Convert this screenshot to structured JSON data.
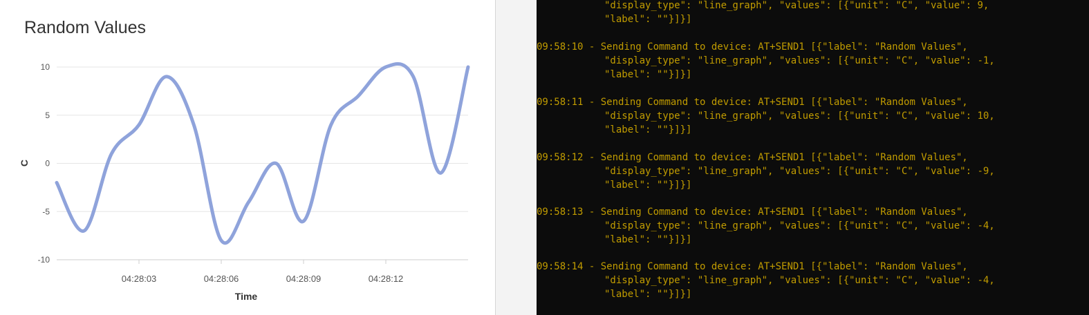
{
  "chart_data": {
    "type": "line",
    "title": "Random Values",
    "xlabel": "Time",
    "ylabel": "C",
    "yticks": [
      "10",
      "5",
      "0",
      "-5",
      "-10"
    ],
    "ylim": [
      -10,
      10
    ],
    "xticks": [
      "04:28:03",
      "04:28:06",
      "04:28:09",
      "04:28:12"
    ],
    "xlim": [
      0,
      15
    ],
    "grid": true,
    "legend": "none",
    "color": "#8fa3db",
    "x": [
      0,
      1,
      2,
      3,
      4,
      5,
      6,
      7,
      8,
      9,
      10,
      11,
      12,
      13,
      14,
      15
    ],
    "series": [
      {
        "values": [
          -2,
          -7,
          1,
          4,
          9,
          4,
          -8,
          -4,
          0,
          -6,
          4,
          7,
          10,
          9,
          -1,
          10
        ]
      }
    ]
  },
  "terminal": {
    "entries": [
      {
        "lines": [
          "\"display_type\": \"line_graph\", \"values\": [{\"unit\": \"C\", \"value\": 9,",
          "\"label\": \"\"}]}]"
        ]
      },
      {
        "time": "09:58:10",
        "lines": [
          "- Sending Command to device: AT+SEND1 [{\"label\": \"Random Values\",",
          "\"display_type\": \"line_graph\", \"values\": [{\"unit\": \"C\", \"value\": -1,",
          "\"label\": \"\"}]}]"
        ]
      },
      {
        "time": "09:58:11",
        "lines": [
          "- Sending Command to device: AT+SEND1 [{\"label\": \"Random Values\",",
          "\"display_type\": \"line_graph\", \"values\": [{\"unit\": \"C\", \"value\": 10,",
          "\"label\": \"\"}]}]"
        ]
      },
      {
        "time": "09:58:12",
        "lines": [
          "- Sending Command to device: AT+SEND1 [{\"label\": \"Random Values\",",
          "\"display_type\": \"line_graph\", \"values\": [{\"unit\": \"C\", \"value\": -9,",
          "\"label\": \"\"}]}]"
        ]
      },
      {
        "time": "09:58:13",
        "lines": [
          "- Sending Command to device: AT+SEND1 [{\"label\": \"Random Values\",",
          "\"display_type\": \"line_graph\", \"values\": [{\"unit\": \"C\", \"value\": -4,",
          "\"label\": \"\"}]}]"
        ]
      },
      {
        "time": "09:58:14",
        "lines": [
          "- Sending Command to device: AT+SEND1 [{\"label\": \"Random Values\",",
          "\"display_type\": \"line_graph\", \"values\": [{\"unit\": \"C\", \"value\": -4,",
          "\"label\": \"\"}]}]"
        ]
      }
    ]
  },
  "colors": {
    "terminal_bg": "#0c0c0c",
    "terminal_text": "#c19c00",
    "series_line": "#8fa3db",
    "grid": "#e6e6e6"
  }
}
